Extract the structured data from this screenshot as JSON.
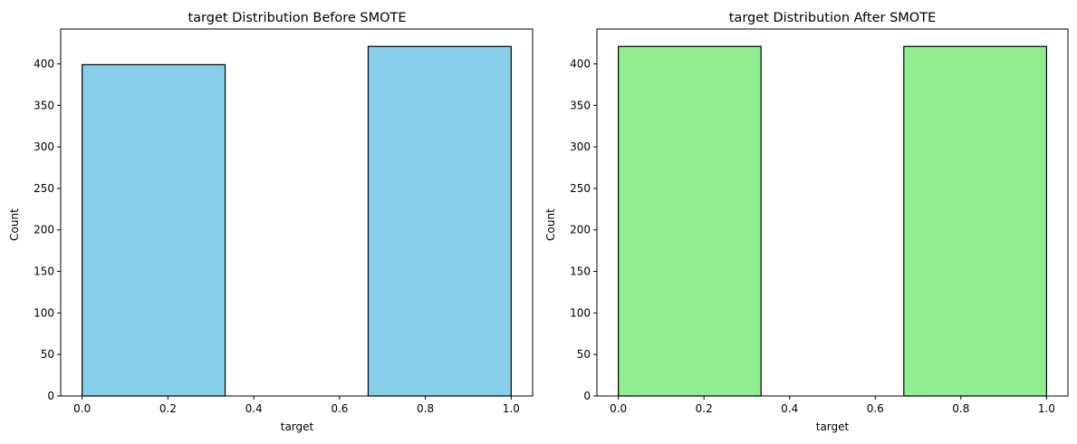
{
  "chart_data": [
    {
      "type": "bar",
      "title": "target Distribution Before SMOTE",
      "xlabel": "target",
      "ylabel": "Count",
      "bin_edges": [
        0.0,
        0.3333,
        0.6667,
        1.0
      ],
      "values": [
        399,
        0,
        421
      ],
      "color": "#87ceeb",
      "edgecolor": "#000000",
      "xlim": [
        -0.05,
        1.05
      ],
      "ylim": [
        0,
        442
      ],
      "xticks": [
        0.0,
        0.2,
        0.4,
        0.6,
        0.8,
        1.0
      ],
      "xtick_labels": [
        "0.0",
        "0.2",
        "0.4",
        "0.6",
        "0.8",
        "1.0"
      ],
      "yticks": [
        0,
        50,
        100,
        150,
        200,
        250,
        300,
        350,
        400
      ],
      "ytick_labels": [
        "0",
        "50",
        "100",
        "150",
        "200",
        "250",
        "300",
        "350",
        "400"
      ],
      "grid": false
    },
    {
      "type": "bar",
      "title": "target Distribution After SMOTE",
      "xlabel": "target",
      "ylabel": "Count",
      "bin_edges": [
        0.0,
        0.3333,
        0.6667,
        1.0
      ],
      "values": [
        421,
        0,
        421
      ],
      "color": "#90ee90",
      "edgecolor": "#000000",
      "xlim": [
        -0.05,
        1.05
      ],
      "ylim": [
        0,
        442
      ],
      "xticks": [
        0.0,
        0.2,
        0.4,
        0.6,
        0.8,
        1.0
      ],
      "xtick_labels": [
        "0.0",
        "0.2",
        "0.4",
        "0.6",
        "0.8",
        "1.0"
      ],
      "yticks": [
        0,
        50,
        100,
        150,
        200,
        250,
        300,
        350,
        400
      ],
      "ytick_labels": [
        "0",
        "50",
        "100",
        "150",
        "200",
        "250",
        "300",
        "350",
        "400"
      ],
      "grid": false
    }
  ]
}
